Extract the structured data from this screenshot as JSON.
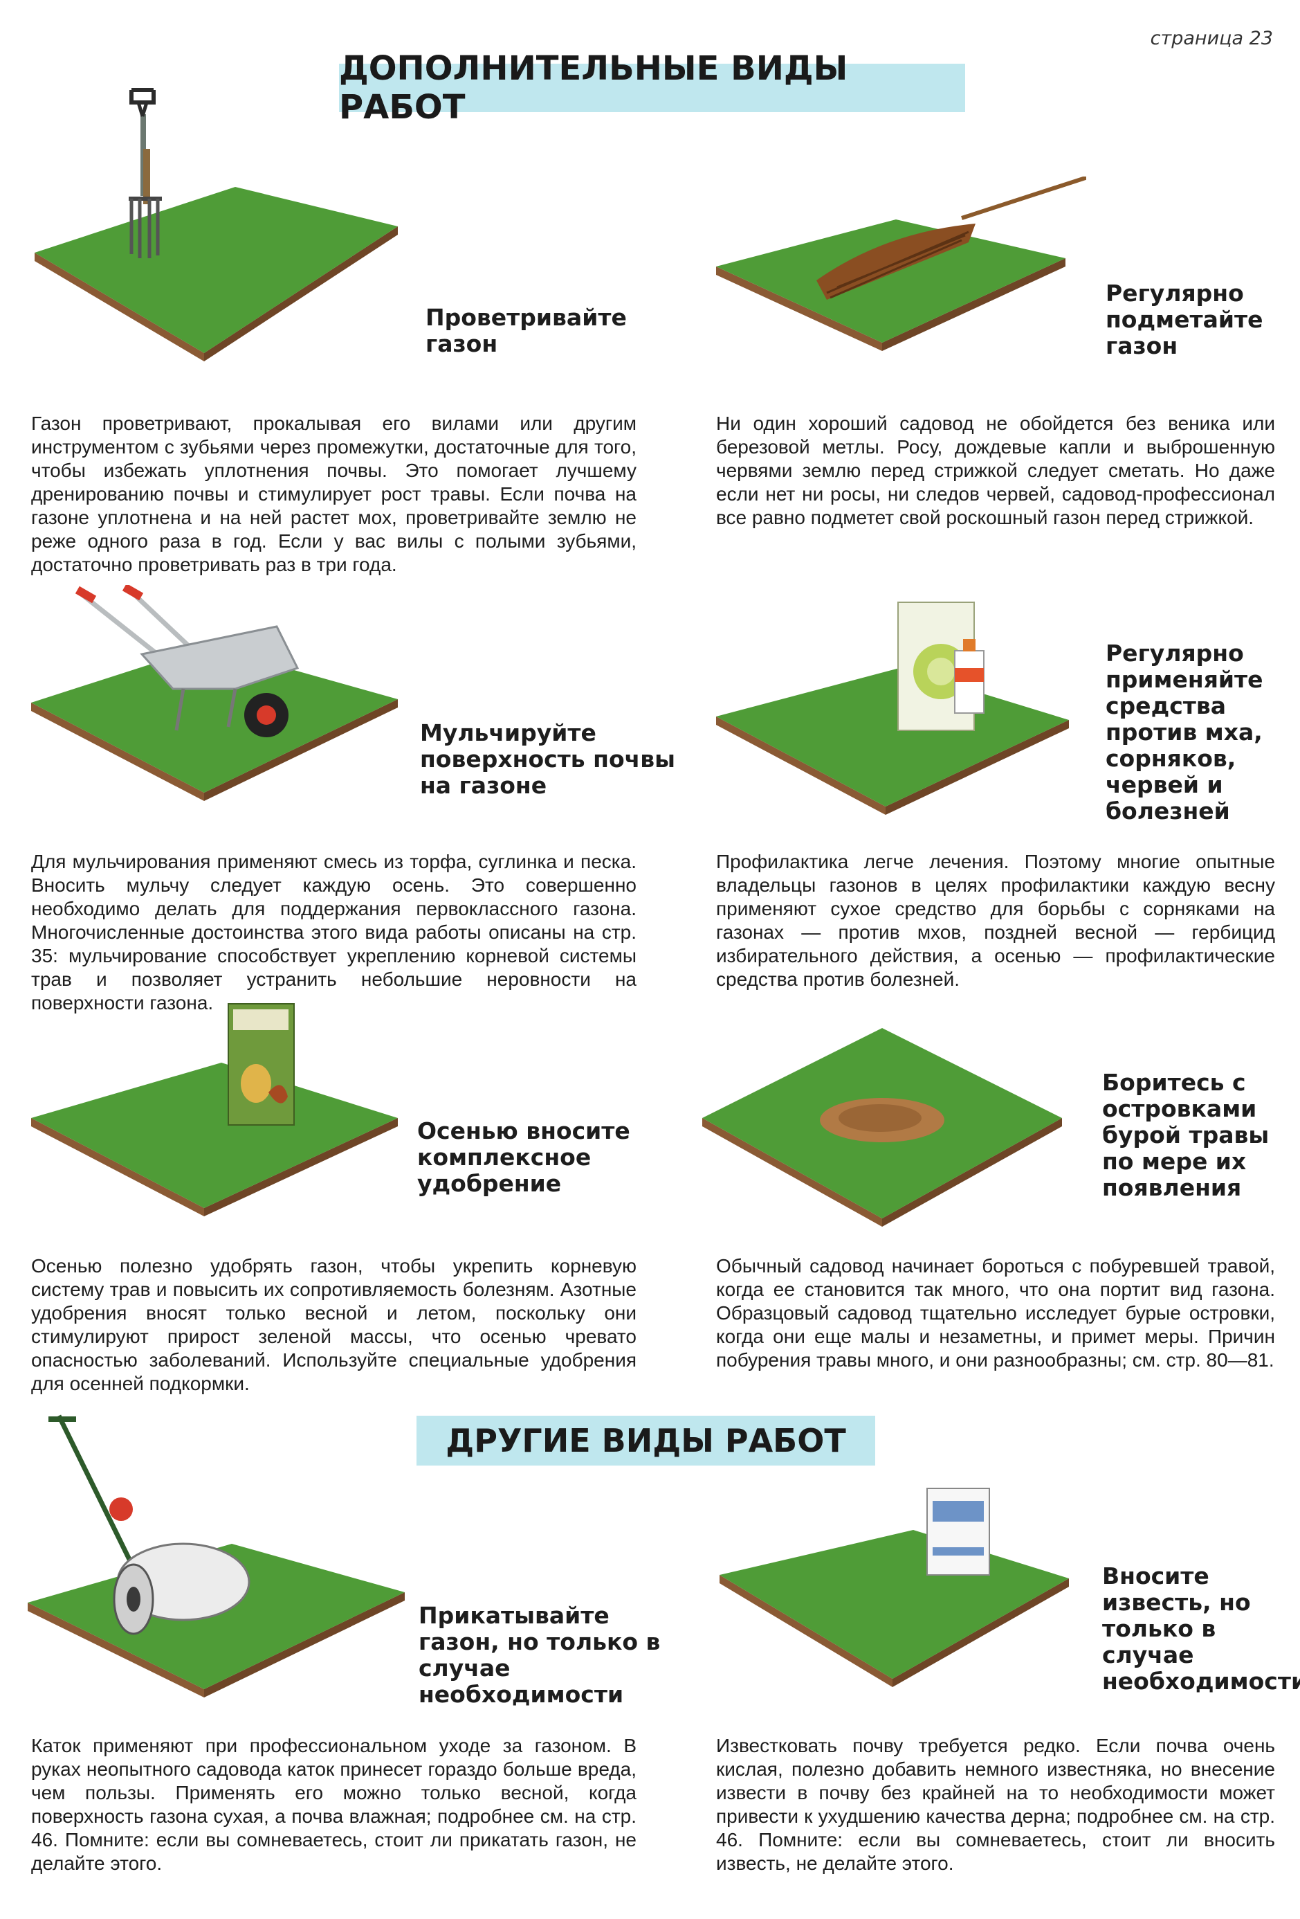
{
  "page_label": "страница 23",
  "section1_title": "ДОПОЛНИТЕЛЬНЫЕ ВИДЫ РАБОТ",
  "section2_title": "ДРУГИЕ ВИДЫ РАБОТ",
  "colors": {
    "banner": "#bfe7ee",
    "grass": "#4f9c37",
    "soil": "#8a5a34"
  },
  "items": [
    {
      "icon": "garden-fork-icon",
      "heading": "Проветривайте газон",
      "text": "Газон проветривают, прокалывая его вилами или другим инструментом с зубьями через промежутки, достаточные для того, чтобы избежать уплотнения почвы. Это помогает лучшему дренированию почвы и стимулирует рост травы. Если почва на газоне уплотнена и на ней растет мох, проветривайте землю не реже одного раза в год. Если у вас вилы с полыми зубьями, достаточно проветривать раз в три года."
    },
    {
      "icon": "broom-icon",
      "heading": "Регулярно подметайте газон",
      "text": "Ни один хороший садовод не обойдется без веника или березовой метлы. Росу, дождевые капли и выброшенную червями землю перед стрижкой следует сметать. Но даже если нет ни росы, ни следов червей, садовод-профессионал все равно подметет свой роскошный газон перед стрижкой."
    },
    {
      "icon": "wheelbarrow-icon",
      "heading": "Мульчируйте поверхность почвы на газоне",
      "text": "Для мульчирования применяют смесь из торфа, суглинка и песка. Вносить мульчу следует каждую осень. Это совершенно необходимо делать для поддержания первоклассного газона. Многочисленные достоинства этого вида работы описаны на стр. 35: мульчирование способствует укреплению корневой системы трав и позволяет устранить небольшие неровности на поверхности газона."
    },
    {
      "icon": "chemical-pack-icon",
      "heading": "Регулярно применяйте средства против мха, сорняков, червей и болезней",
      "text": "Профилактика легче лечения. Поэтому многие опытные владельцы газонов в целях профилактики каждую весну применяют сухое средство для борьбы с сорняками на газонах — против мхов, поздней весной — гербицид избирательного действия, а осенью — профилактические средства против болезней."
    },
    {
      "icon": "fertilizer-bag-icon",
      "heading": "Осенью вносите комплексное удобрение",
      "text": "Осенью полезно удобрять газон, чтобы укрепить корневую систему трав и повысить их сопротивляемость болезням. Азотные удобрения вносят только весной и летом, поскольку они стимулируют прирост зеленой массы, что осенью чревато опасностью заболеваний. Используйте специальные удобрения для осенней подкормки."
    },
    {
      "icon": "brown-patch-icon",
      "heading": "Боритесь с островками бурой травы по мере их появления",
      "text": "Обычный садовод начинает бороться с побуревшей травой, когда ее становится так много, что она портит вид газона. Образцовый садовод тщательно исследует бурые островки, когда они еще малы и незаметны, и примет меры. Причин побурения травы много, и они разнообразны; см. стр. 80—81."
    },
    {
      "icon": "lawn-roller-icon",
      "heading": "Прикатывайте газон, но только в случае необходимости",
      "text": "Каток применяют при профессиональном уходе за газоном. В руках неопытного садовода каток принесет гораздо больше вреда, чем пользы. Применять его можно только весной, когда поверхность газона сухая, а почва влажная; подробнее см. на стр. 46. Помните: если вы сомневаетесь, стоит ли прикатать газон, не делайте этого."
    },
    {
      "icon": "lime-box-icon",
      "heading": "Вносите известь, но только в случае необходимости",
      "text": "Известковать почву требуется редко. Если почва очень кислая, полезно добавить немного известняка, но внесение извести в почву без крайней на то необходимости может привести к ухудшению качества дерна; подробнее см. на стр. 46. Помните: если вы сомневаетесь, стоит ли вносить известь, не делайте этого."
    }
  ]
}
